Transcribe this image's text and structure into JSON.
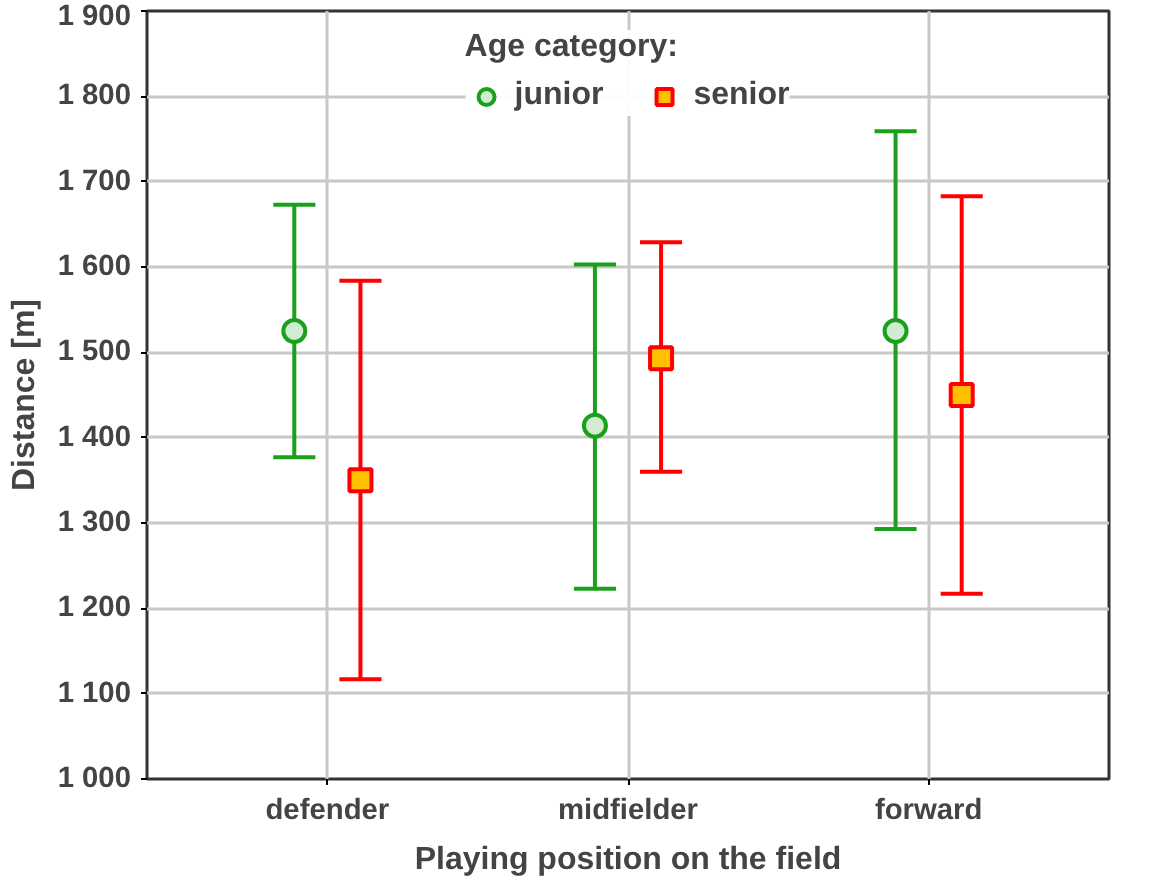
{
  "chart_data": {
    "type": "scatter",
    "xlabel": "Playing position on the field",
    "ylabel": "Distance [m]",
    "legend_title": "Age category:",
    "categories": [
      "defender",
      "midfielder",
      "forward"
    ],
    "series": [
      {
        "name": "junior",
        "color": "#1aa01a",
        "marker": "circle",
        "values": [
          1525,
          1414,
          1525
        ],
        "errors": [
          [
            1377,
            1673
          ],
          [
            1223,
            1603
          ],
          [
            1293,
            1759
          ]
        ]
      },
      {
        "name": "senior",
        "color": "#ff0000",
        "marker": "square",
        "values": [
          1350,
          1493,
          1450
        ],
        "errors": [
          [
            1117,
            1584
          ],
          [
            1360,
            1629
          ],
          [
            1217,
            1683
          ]
        ]
      }
    ],
    "ylim": [
      1000,
      1900
    ],
    "yticks": [
      {
        "value": 1000,
        "label": "1 000"
      },
      {
        "value": 1100,
        "label": "1 100"
      },
      {
        "value": 1200,
        "label": "1 200"
      },
      {
        "value": 1300,
        "label": "1 300"
      },
      {
        "value": 1400,
        "label": "1 400"
      },
      {
        "value": 1500,
        "label": "1 500"
      },
      {
        "value": 1600,
        "label": "1 600"
      },
      {
        "value": 1700,
        "label": "1 700"
      },
      {
        "value": 1800,
        "label": "1 800"
      },
      {
        "value": 1900,
        "label": "1 900"
      }
    ],
    "grid": true,
    "legend": "top"
  }
}
